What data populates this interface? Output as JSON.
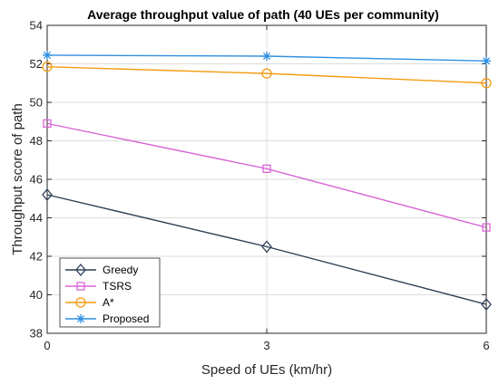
{
  "chart_data": {
    "type": "line",
    "title": "Average throughput value of path (40 UEs per community)",
    "xlabel": "Speed of UEs (km/hr)",
    "ylabel": "Throughput score of path",
    "x": [
      0,
      3,
      6
    ],
    "xticks": [
      "0",
      "3",
      "6"
    ],
    "xlim": [
      0,
      6
    ],
    "ylim": [
      38,
      54
    ],
    "yticks": [
      "38",
      "40",
      "42",
      "44",
      "46",
      "48",
      "50",
      "52",
      "54"
    ],
    "grid": true,
    "legend_position": "bottom-left",
    "series": [
      {
        "name": "Greedy",
        "values": [
          45.2,
          42.5,
          39.5
        ],
        "color": "#2e4057",
        "marker": "diamond"
      },
      {
        "name": "TSRS",
        "values": [
          48.9,
          46.55,
          43.5
        ],
        "color": "#d966d6",
        "marker": "square"
      },
      {
        "name": "A*",
        "values": [
          51.85,
          51.5,
          51.0
        ],
        "color": "#f39c12",
        "marker": "circle"
      },
      {
        "name": "Proposed",
        "values": [
          52.45,
          52.4,
          52.15
        ],
        "color": "#2f8fe0",
        "marker": "asterisk"
      }
    ]
  }
}
